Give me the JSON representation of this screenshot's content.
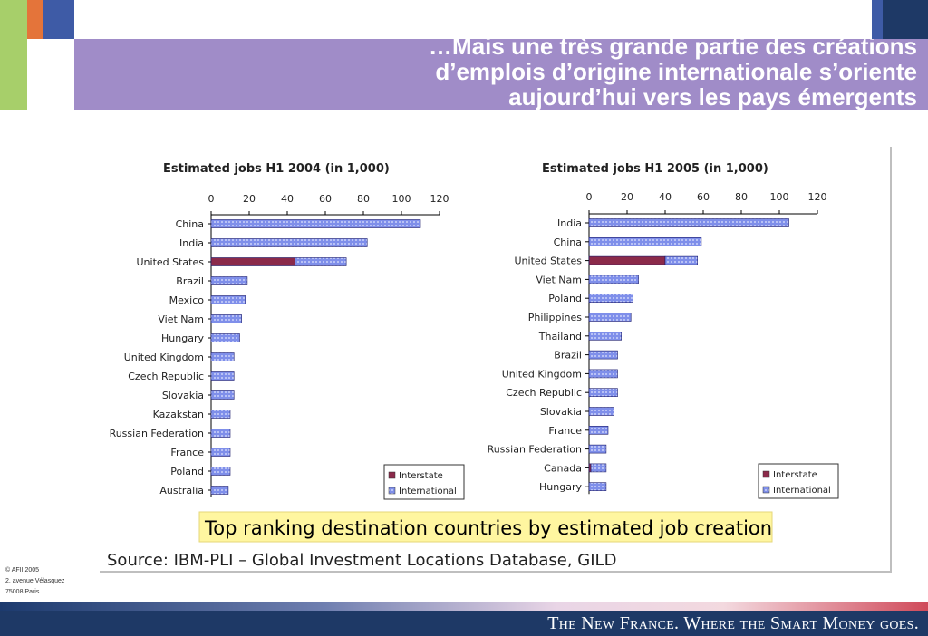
{
  "slide": {
    "title_lines": [
      "…Mais une très grande partie des créations",
      "d’emplois d’origine internationale s’oriente",
      "aujourd’hui vers les pays émergents"
    ],
    "caption": "Top ranking destination countries by estimated job creation",
    "source": "Source: IBM-PLI – Global Investment Locations Database, GILD",
    "footer_lines": [
      "© AFII 2005",
      "2, avenue Vélasquez",
      "75008 Paris"
    ],
    "tagline": "The New France. Where the Smart Money goes."
  },
  "colors": {
    "interstate": "#8b2a4a",
    "international": "#7f8fea",
    "title_band": "#a08cc8",
    "orange_block": "#e4743a",
    "blue_block": "#3e5ba6",
    "green_block": "#a7cf6a",
    "navy_block": "#1e3966",
    "caption_bg": "#fff6a0"
  },
  "chart_data": [
    {
      "type": "bar",
      "orientation": "horizontal",
      "stacked": true,
      "title": "Estimated jobs H1 2004 (in 1,000)",
      "xlim": [
        0,
        120
      ],
      "x_ticks": [
        0,
        20,
        40,
        60,
        80,
        100,
        120
      ],
      "categories": [
        "China",
        "India",
        "United States",
        "Brazil",
        "Mexico",
        "Viet Nam",
        "Hungary",
        "United Kingdom",
        "Czech Republic",
        "Slovakia",
        "Kazakstan",
        "Russian Federation",
        "France",
        "Poland",
        "Australia"
      ],
      "series": [
        {
          "name": "Interstate",
          "values": [
            0,
            0,
            44,
            0,
            0,
            0,
            0,
            0,
            0,
            0,
            0,
            0,
            0,
            0,
            0
          ]
        },
        {
          "name": "International",
          "values": [
            110,
            82,
            27,
            19,
            18,
            16,
            15,
            12,
            12,
            12,
            10,
            10,
            10,
            10,
            9
          ]
        }
      ],
      "legend": "bottom-right"
    },
    {
      "type": "bar",
      "orientation": "horizontal",
      "stacked": true,
      "title": "Estimated jobs H1 2005 (in 1,000)",
      "xlim": [
        0,
        120
      ],
      "x_ticks": [
        0,
        20,
        40,
        60,
        80,
        100,
        120
      ],
      "categories": [
        "India",
        "China",
        "United States",
        "Viet Nam",
        "Poland",
        "Philippines",
        "Thailand",
        "Brazil",
        "United Kingdom",
        "Czech Republic",
        "Slovakia",
        "France",
        "Russian Federation",
        "Canada",
        "Hungary"
      ],
      "series": [
        {
          "name": "Interstate",
          "values": [
            0,
            0,
            40,
            0,
            0,
            0,
            0,
            0,
            0,
            0,
            0,
            0,
            0,
            1,
            0
          ]
        },
        {
          "name": "International",
          "values": [
            105,
            59,
            17,
            26,
            23,
            22,
            17,
            15,
            15,
            15,
            13,
            10,
            9,
            8,
            9
          ]
        }
      ],
      "legend": "bottom-right"
    }
  ]
}
